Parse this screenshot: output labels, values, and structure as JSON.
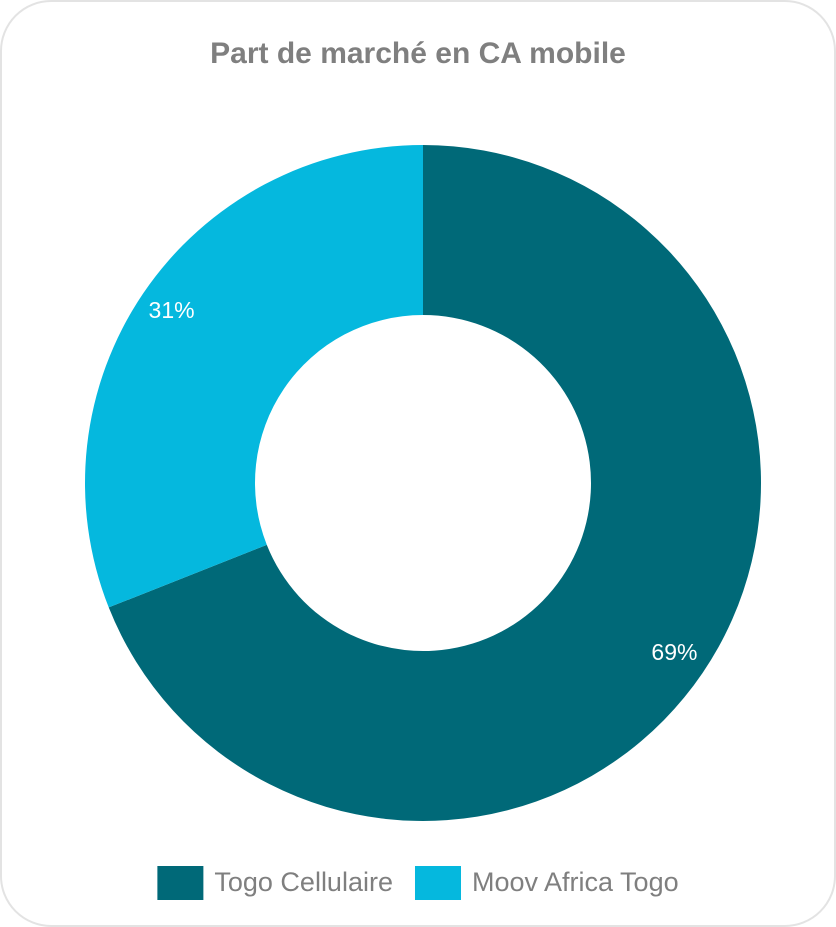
{
  "chart_data": {
    "type": "donut",
    "title": "Part de marché en CA mobile",
    "categories": [
      "Togo Cellulaire",
      "Moov Africa Togo"
    ],
    "values": [
      69,
      31
    ],
    "value_labels": [
      "69%",
      "31%"
    ],
    "colors": [
      "#006978",
      "#05b8de"
    ],
    "legend": "bottom"
  }
}
